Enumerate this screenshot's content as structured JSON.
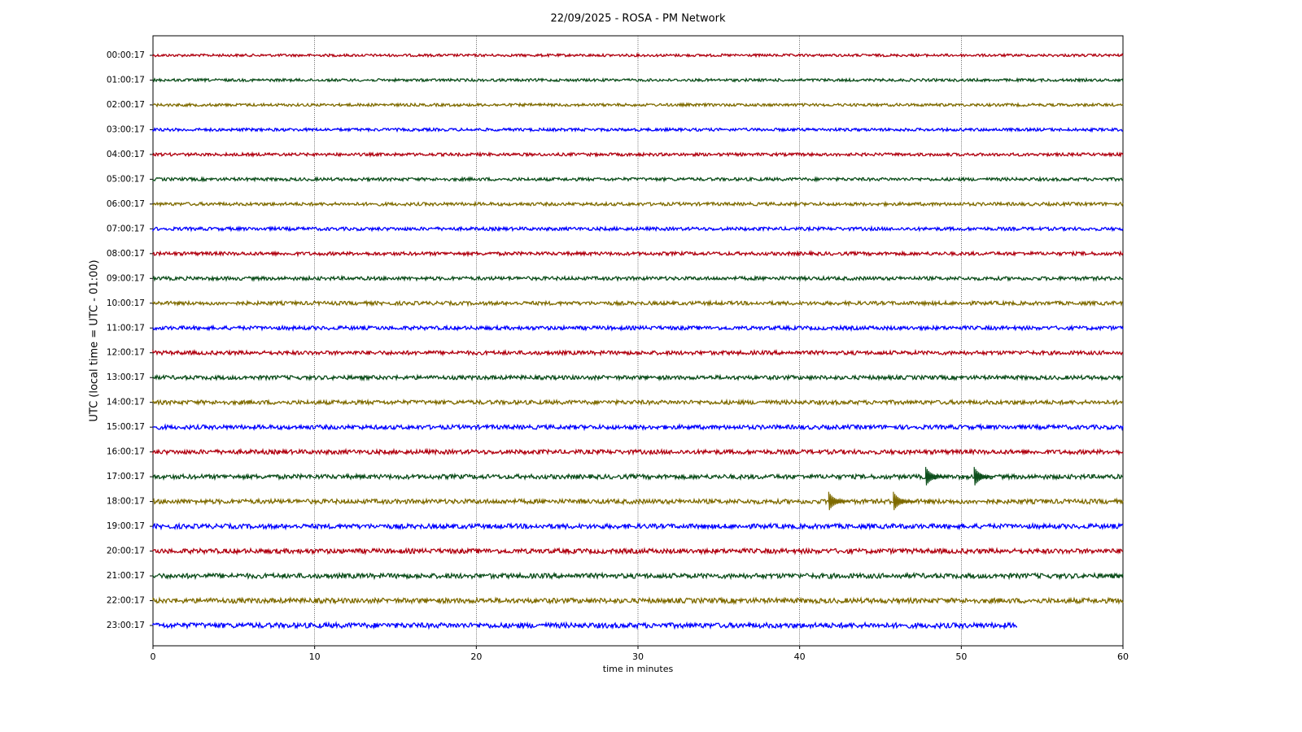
{
  "chart_data": {
    "type": "helicorder",
    "title": "22/09/2025 - ROSA - PM Network",
    "xlabel": "time in minutes",
    "ylabel": "UTC (local time = UTC - 01:00)",
    "xlim": [
      0,
      60
    ],
    "xticks": [
      0,
      10,
      20,
      30,
      40,
      50,
      60
    ],
    "grid": true,
    "colors": [
      "#b0000f",
      "#0b4d1a",
      "#7f6b00",
      "#0000ff"
    ],
    "rows": [
      {
        "label": "00:00:17",
        "end": 60
      },
      {
        "label": "01:00:17",
        "end": 60
      },
      {
        "label": "02:00:17",
        "end": 60
      },
      {
        "label": "03:00:17",
        "end": 60
      },
      {
        "label": "04:00:17",
        "end": 60
      },
      {
        "label": "05:00:17",
        "end": 60
      },
      {
        "label": "06:00:17",
        "end": 60
      },
      {
        "label": "07:00:17",
        "end": 60
      },
      {
        "label": "08:00:17",
        "end": 60
      },
      {
        "label": "09:00:17",
        "end": 60
      },
      {
        "label": "10:00:17",
        "end": 60
      },
      {
        "label": "11:00:17",
        "end": 60
      },
      {
        "label": "12:00:17",
        "end": 60
      },
      {
        "label": "13:00:17",
        "end": 60
      },
      {
        "label": "14:00:17",
        "end": 60
      },
      {
        "label": "15:00:17",
        "end": 60
      },
      {
        "label": "16:00:17",
        "end": 60
      },
      {
        "label": "17:00:17",
        "end": 60,
        "events": [
          48,
          51
        ]
      },
      {
        "label": "18:00:17",
        "end": 60,
        "events": [
          42,
          46
        ]
      },
      {
        "label": "19:00:17",
        "end": 60
      },
      {
        "label": "20:00:17",
        "end": 60
      },
      {
        "label": "21:00:17",
        "end": 60
      },
      {
        "label": "22:00:17",
        "end": 60
      },
      {
        "label": "23:00:17",
        "end": 53.5
      }
    ]
  }
}
